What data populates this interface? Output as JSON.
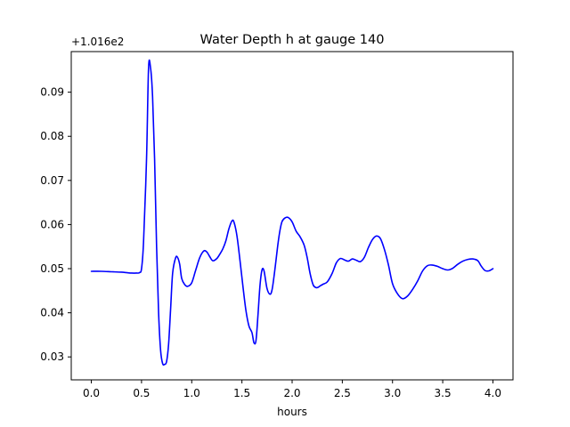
{
  "chart_data": {
    "type": "line",
    "title": "Water Depth h at gauge 140",
    "xlabel": "hours",
    "ylabel": "",
    "offset_label": "+1.016e2",
    "xlim": [
      -0.2,
      4.2
    ],
    "ylim": [
      0.0248,
      0.0992
    ],
    "xticks": [
      0.0,
      0.5,
      1.0,
      1.5,
      2.0,
      2.5,
      3.0,
      3.5,
      4.0
    ],
    "xtick_labels": [
      "0.0",
      "0.5",
      "1.0",
      "1.5",
      "2.0",
      "2.5",
      "3.0",
      "3.5",
      "4.0"
    ],
    "yticks": [
      0.03,
      0.04,
      0.05,
      0.06,
      0.07,
      0.08,
      0.09
    ],
    "ytick_labels": [
      "0.03",
      "0.04",
      "0.05",
      "0.06",
      "0.07",
      "0.08",
      "0.09"
    ],
    "grid": false,
    "series": [
      {
        "color": "#0000ff",
        "x": [
          0.0,
          0.1,
          0.2,
          0.3,
          0.35,
          0.4,
          0.45,
          0.48,
          0.5,
          0.52,
          0.55,
          0.57,
          0.59,
          0.61,
          0.63,
          0.65,
          0.67,
          0.69,
          0.71,
          0.73,
          0.75,
          0.77,
          0.79,
          0.81,
          0.84,
          0.86,
          0.88,
          0.9,
          0.93,
          0.96,
          1.0,
          1.04,
          1.08,
          1.12,
          1.15,
          1.18,
          1.21,
          1.25,
          1.28,
          1.31,
          1.34,
          1.37,
          1.4,
          1.42,
          1.45,
          1.48,
          1.51,
          1.54,
          1.57,
          1.6,
          1.62,
          1.64,
          1.66,
          1.68,
          1.7,
          1.72,
          1.75,
          1.78,
          1.8,
          1.82,
          1.84,
          1.86,
          1.88,
          1.9,
          1.93,
          1.96,
          2.0,
          2.04,
          2.08,
          2.12,
          2.15,
          2.18,
          2.21,
          2.24,
          2.26,
          2.28,
          2.31,
          2.35,
          2.4,
          2.44,
          2.48,
          2.52,
          2.56,
          2.6,
          2.64,
          2.68,
          2.72,
          2.76,
          2.8,
          2.84,
          2.88,
          2.92,
          2.96,
          3.0,
          3.05,
          3.1,
          3.15,
          3.2,
          3.25,
          3.3,
          3.35,
          3.4,
          3.45,
          3.5,
          3.55,
          3.6,
          3.65,
          3.7,
          3.75,
          3.8,
          3.85,
          3.88,
          3.92,
          3.96,
          4.0
        ],
        "values": [
          0.0494,
          0.0494,
          0.0493,
          0.0492,
          0.0491,
          0.049,
          0.049,
          0.0491,
          0.05,
          0.056,
          0.075,
          0.0955,
          0.0955,
          0.089,
          0.075,
          0.055,
          0.04,
          0.0315,
          0.0285,
          0.0283,
          0.029,
          0.033,
          0.041,
          0.049,
          0.0525,
          0.0525,
          0.051,
          0.0478,
          0.0464,
          0.046,
          0.0468,
          0.0497,
          0.0525,
          0.054,
          0.0538,
          0.0527,
          0.0518,
          0.0523,
          0.0533,
          0.0545,
          0.0563,
          0.059,
          0.0608,
          0.0606,
          0.0575,
          0.052,
          0.046,
          0.0405,
          0.037,
          0.0355,
          0.0332,
          0.0337,
          0.0395,
          0.0462,
          0.0497,
          0.0495,
          0.0455,
          0.0442,
          0.0452,
          0.0483,
          0.052,
          0.0558,
          0.0588,
          0.0607,
          0.0615,
          0.0616,
          0.0606,
          0.0585,
          0.0572,
          0.0553,
          0.0525,
          0.0488,
          0.0463,
          0.0457,
          0.0458,
          0.0461,
          0.0465,
          0.047,
          0.049,
          0.0513,
          0.0523,
          0.052,
          0.0517,
          0.0522,
          0.0519,
          0.0516,
          0.0526,
          0.0548,
          0.0566,
          0.0574,
          0.0568,
          0.0543,
          0.0508,
          0.0466,
          0.0443,
          0.0432,
          0.0438,
          0.0453,
          0.0472,
          0.0495,
          0.0507,
          0.0508,
          0.0505,
          0.05,
          0.0497,
          0.0501,
          0.051,
          0.0517,
          0.0521,
          0.0522,
          0.0518,
          0.0507,
          0.0496,
          0.0495,
          0.05
        ]
      }
    ]
  }
}
